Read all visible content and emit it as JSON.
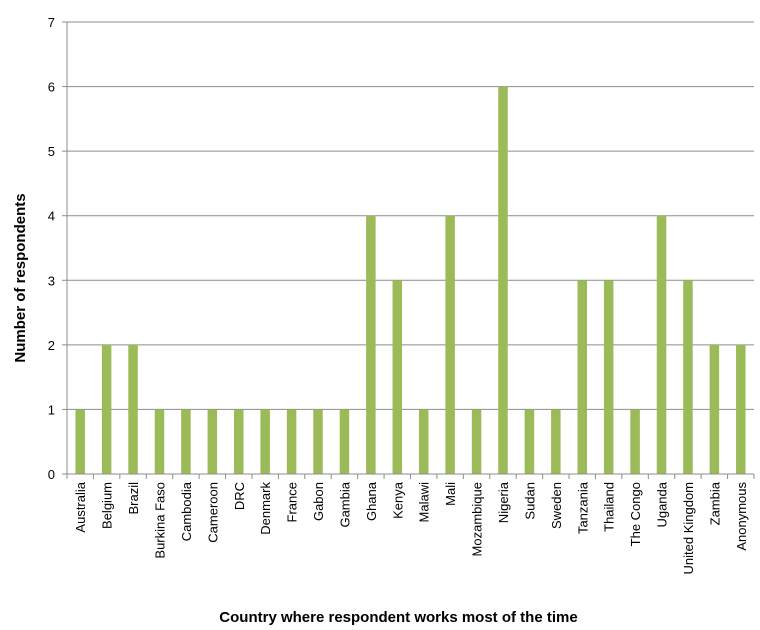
{
  "chart_data": {
    "type": "bar",
    "title": "",
    "xlabel": "Country where respondent works most of the time",
    "ylabel": "Number of respondents",
    "ylim": [
      0,
      7
    ],
    "yticks": [
      0,
      1,
      2,
      3,
      4,
      5,
      6,
      7
    ],
    "grid": true,
    "bar_color": "#9bbb59",
    "categories": [
      "Australia",
      "Belgium",
      "Brazil",
      "Burkina Faso",
      "Cambodia",
      "Cameroon",
      "DRC",
      "Denmark",
      "France",
      "Gabon",
      "Gambia",
      "Ghana",
      "Kenya",
      "Malawi",
      "Mali",
      "Mozambique",
      "Nigeria",
      "Sudan",
      "Sweden",
      "Tanzania",
      "Thailand",
      "The Congo",
      "Uganda",
      "United Kingdom",
      "Zambia",
      "Anonymous"
    ],
    "values": [
      1,
      2,
      2,
      1,
      1,
      1,
      1,
      1,
      1,
      1,
      1,
      4,
      3,
      1,
      4,
      1,
      6,
      1,
      1,
      3,
      3,
      1,
      4,
      3,
      2,
      2
    ]
  }
}
